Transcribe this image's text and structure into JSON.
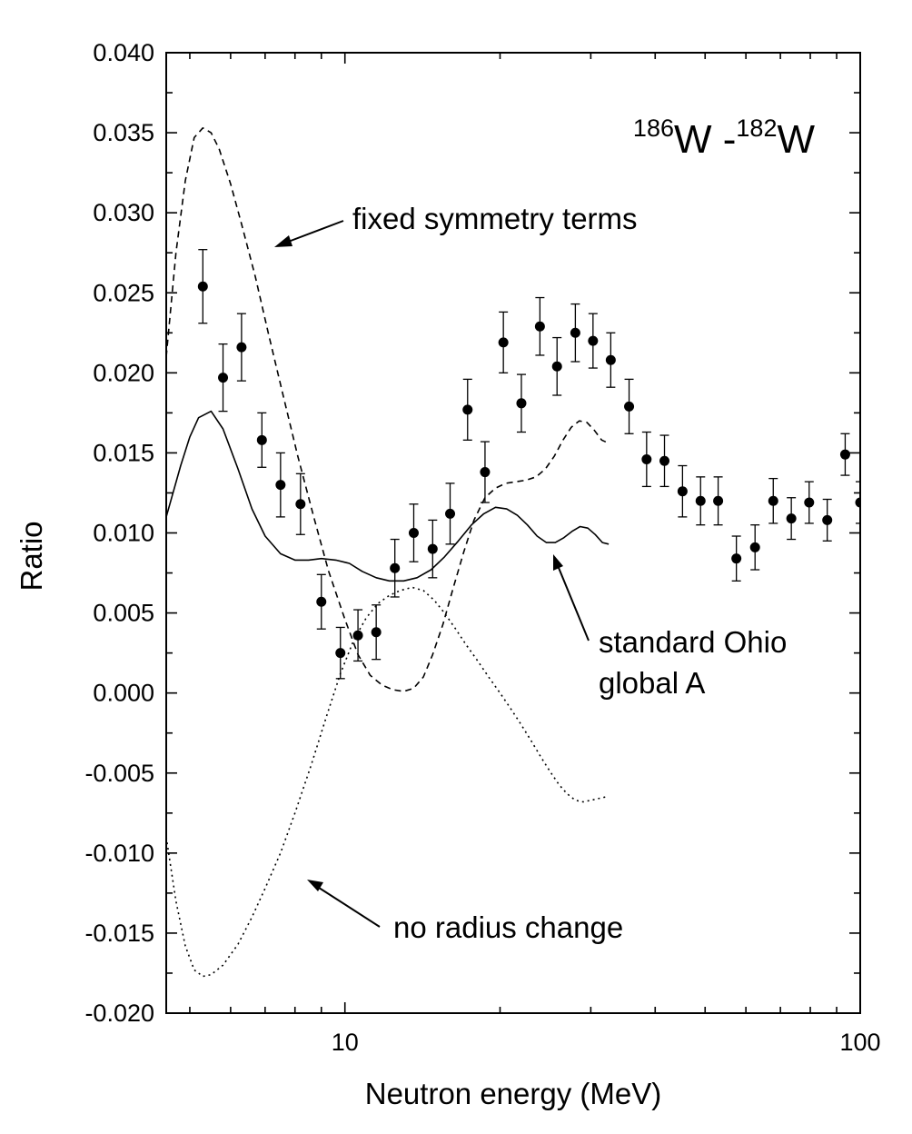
{
  "chart_data": {
    "type": "scatter",
    "title_parts": {
      "sup1": "186",
      "base1": "W",
      "sep": " -",
      "sup2": "182",
      "base2": "W"
    },
    "xlabel": "Neutron energy (MeV)",
    "ylabel": "Ratio",
    "x_scale": "log",
    "xlim": [
      4.5,
      100
    ],
    "ylim": [
      -0.02,
      0.04
    ],
    "x_tick_labels": [
      {
        "value": 10,
        "label": "10"
      },
      {
        "value": 100,
        "label": "100"
      }
    ],
    "y_tick_labels": [
      {
        "value": 0.04,
        "label": "0.040"
      },
      {
        "value": 0.035,
        "label": "0.035"
      },
      {
        "value": 0.03,
        "label": "0.030"
      },
      {
        "value": 0.025,
        "label": "0.025"
      },
      {
        "value": 0.02,
        "label": "0.020"
      },
      {
        "value": 0.015,
        "label": "0.015"
      },
      {
        "value": 0.01,
        "label": "0.010"
      },
      {
        "value": 0.005,
        "label": "0.005"
      },
      {
        "value": 0.0,
        "label": "0.000"
      },
      {
        "value": -0.005,
        "label": "-0.005"
      },
      {
        "value": -0.01,
        "label": "-0.010"
      },
      {
        "value": -0.015,
        "label": "-0.015"
      },
      {
        "value": -0.02,
        "label": "-0.020"
      }
    ],
    "grid": false,
    "measured": {
      "x": [
        5.3,
        5.8,
        6.3,
        6.9,
        7.5,
        8.2,
        9.0,
        9.8,
        10.6,
        11.5,
        12.5,
        13.6,
        14.8,
        16.0,
        17.3,
        18.7,
        20.3,
        22.0,
        23.9,
        25.8,
        28.0,
        30.3,
        32.8,
        35.6,
        38.5,
        41.7,
        45.2,
        49.0,
        53.0,
        57.5,
        62.5,
        67.8,
        73.5,
        79.6,
        86.3,
        93.5,
        100.0
      ],
      "y": [
        0.0254,
        0.0197,
        0.0216,
        0.0158,
        0.013,
        0.0118,
        0.0057,
        0.0025,
        0.0036,
        0.0038,
        0.0078,
        0.01,
        0.009,
        0.0112,
        0.0177,
        0.0138,
        0.0219,
        0.0181,
        0.0229,
        0.0204,
        0.0225,
        0.022,
        0.0208,
        0.0179,
        0.0146,
        0.0145,
        0.0126,
        0.012,
        0.012,
        0.0084,
        0.0091,
        0.012,
        0.0109,
        0.0119,
        0.0108,
        0.0149,
        0.0119
      ],
      "err": [
        0.0023,
        0.0021,
        0.0021,
        0.0017,
        0.002,
        0.0019,
        0.0017,
        0.0016,
        0.0016,
        0.0017,
        0.0018,
        0.0018,
        0.0018,
        0.0019,
        0.0019,
        0.0019,
        0.0019,
        0.0018,
        0.0018,
        0.0018,
        0.0018,
        0.0017,
        0.0017,
        0.0017,
        0.0017,
        0.0016,
        0.0016,
        0.0015,
        0.0015,
        0.0014,
        0.0014,
        0.0014,
        0.0013,
        0.0013,
        0.0013,
        0.0013,
        0.0013
      ]
    },
    "series": [
      {
        "key": "standard",
        "style": "solid",
        "x": [
          4.5,
          4.8,
          5.0,
          5.2,
          5.5,
          5.8,
          6.2,
          6.6,
          7.0,
          7.5,
          8.0,
          8.5,
          9.0,
          9.6,
          10.2,
          10.8,
          11.5,
          12.2,
          13.0,
          13.8,
          14.7,
          15.6,
          16.6,
          17.6,
          18.6,
          19.6,
          20.6,
          21.6,
          22.6,
          23.6,
          24.6,
          25.6,
          26.6,
          27.6,
          28.6,
          29.6,
          30.6,
          31.6,
          32.5
        ],
        "y": [
          0.011,
          0.0142,
          0.016,
          0.0172,
          0.0176,
          0.0165,
          0.014,
          0.0115,
          0.0098,
          0.0087,
          0.0083,
          0.0083,
          0.0084,
          0.0083,
          0.0081,
          0.0076,
          0.0072,
          0.007,
          0.007,
          0.0072,
          0.0077,
          0.0085,
          0.0095,
          0.0105,
          0.0112,
          0.0116,
          0.0115,
          0.0111,
          0.0105,
          0.0098,
          0.0094,
          0.0094,
          0.0097,
          0.0101,
          0.0104,
          0.0103,
          0.0099,
          0.0094,
          0.0093
        ]
      },
      {
        "key": "fixed_symmetry",
        "style": "dashed",
        "x": [
          4.5,
          4.7,
          4.9,
          5.1,
          5.3,
          5.5,
          5.7,
          6.0,
          6.3,
          6.7,
          7.1,
          7.6,
          8.1,
          8.7,
          9.3,
          10.0,
          10.6,
          11.2,
          11.8,
          12.4,
          13.0,
          13.6,
          14.2,
          14.8,
          15.5,
          16.2,
          17.0,
          17.8,
          18.7,
          19.6,
          20.5,
          21.5,
          22.5,
          23.5,
          24.5,
          25.5,
          26.5,
          27.5,
          28.5,
          29.5,
          30.5,
          31.5,
          32.5
        ],
        "y": [
          0.021,
          0.0275,
          0.032,
          0.0347,
          0.0353,
          0.035,
          0.034,
          0.0318,
          0.0293,
          0.026,
          0.0225,
          0.0185,
          0.0148,
          0.011,
          0.0076,
          0.0046,
          0.0024,
          0.0011,
          0.0005,
          0.0002,
          0.0001,
          0.0003,
          0.001,
          0.0024,
          0.0043,
          0.0065,
          0.0088,
          0.0108,
          0.0122,
          0.0128,
          0.0131,
          0.0132,
          0.0133,
          0.0135,
          0.014,
          0.0148,
          0.0158,
          0.0166,
          0.017,
          0.0169,
          0.0164,
          0.0158,
          0.0156
        ]
      },
      {
        "key": "no_radius_change",
        "style": "dotted",
        "x": [
          4.5,
          4.7,
          4.9,
          5.1,
          5.3,
          5.5,
          5.8,
          6.2,
          6.6,
          7.0,
          7.5,
          8.0,
          8.6,
          9.2,
          9.8,
          10.4,
          11.0,
          11.6,
          12.2,
          12.8,
          13.5,
          14.2,
          14.9,
          15.6,
          16.4,
          17.2,
          18.1,
          19.0,
          20.0,
          21.0,
          22.0,
          23.0,
          24.0,
          25.0,
          26.0,
          27.0,
          28.0,
          29.0,
          30.0,
          31.0,
          32.0,
          32.5
        ],
        "y": [
          -0.009,
          -0.013,
          -0.0158,
          -0.0173,
          -0.0177,
          -0.0176,
          -0.017,
          -0.0157,
          -0.014,
          -0.0122,
          -0.01,
          -0.0075,
          -0.0045,
          -0.0015,
          0.0012,
          0.0033,
          0.0047,
          0.0056,
          0.0061,
          0.0064,
          0.0066,
          0.0064,
          0.0058,
          0.005,
          0.004,
          0.003,
          0.002,
          0.001,
          0.0,
          -0.001,
          -0.002,
          -0.003,
          -0.004,
          -0.0049,
          -0.0057,
          -0.0063,
          -0.0067,
          -0.0068,
          -0.0067,
          -0.0066,
          -0.0065,
          -0.0065
        ]
      }
    ],
    "annotations": {
      "fixed": "fixed symmetry terms",
      "standard_line1": "standard Ohio",
      "standard_line2": "global A",
      "no_radius": "no radius change"
    }
  }
}
